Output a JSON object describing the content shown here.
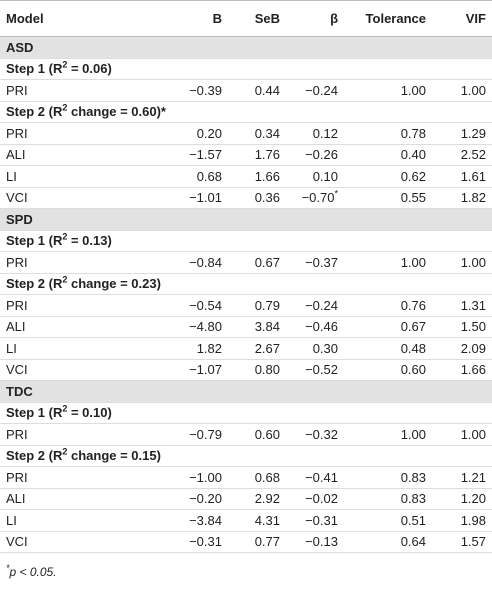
{
  "table": {
    "columns": [
      "Model",
      "B",
      "SeB",
      "β",
      "Tolerance",
      "VIF"
    ],
    "groups": [
      {
        "name": "ASD",
        "steps": [
          {
            "label": {
              "before": "Step 1 (R",
              "sup": "2",
              "after": " = 0.06)"
            },
            "rows": [
              [
                "PRI",
                "−0.39",
                "0.44",
                "−0.24",
                "1.00",
                "1.00"
              ]
            ]
          },
          {
            "label": {
              "before": "Step 2 (R",
              "sup": "2",
              "after": " change = 0.60)*"
            },
            "rows": [
              [
                "PRI",
                "0.20",
                "0.34",
                "0.12",
                "0.78",
                "1.29"
              ],
              [
                "ALI",
                "−1.57",
                "1.76",
                "−0.26",
                "0.40",
                "2.52"
              ],
              [
                "LI",
                "0.68",
                "1.66",
                "0.10",
                "0.62",
                "1.61"
              ],
              [
                "VCI",
                "−1.01",
                "0.36",
                {
                  "value": "−0.70",
                  "sup": "*"
                },
                "0.55",
                "1.82"
              ]
            ]
          }
        ]
      },
      {
        "name": "SPD",
        "steps": [
          {
            "label": {
              "before": "Step 1 (R",
              "sup": "2",
              "after": " = 0.13)"
            },
            "rows": [
              [
                "PRI",
                "−0.84",
                "0.67",
                "−0.37",
                "1.00",
                "1.00"
              ]
            ]
          },
          {
            "label": {
              "before": "Step 2 (R",
              "sup": "2",
              "after": " change = 0.23)"
            },
            "rows": [
              [
                "PRI",
                "−0.54",
                "0.79",
                "−0.24",
                "0.76",
                "1.31"
              ],
              [
                "ALI",
                "−4.80",
                "3.84",
                "−0.46",
                "0.67",
                "1.50"
              ],
              [
                "LI",
                "1.82",
                "2.67",
                "0.30",
                "0.48",
                "2.09"
              ],
              [
                "VCI",
                "−1.07",
                "0.80",
                "−0.52",
                "0.60",
                "1.66"
              ]
            ]
          }
        ]
      },
      {
        "name": "TDC",
        "steps": [
          {
            "label": {
              "before": "Step 1 (R",
              "sup": "2",
              "after": " = 0.10)"
            },
            "rows": [
              [
                "PRI",
                "−0.79",
                "0.60",
                "−0.32",
                "1.00",
                "1.00"
              ]
            ]
          },
          {
            "label": {
              "before": "Step 2 (R",
              "sup": "2",
              "after": " change = 0.15)"
            },
            "rows": [
              [
                "PRI",
                "−1.00",
                "0.68",
                "−0.41",
                "0.83",
                "1.21"
              ],
              [
                "ALI",
                "−0.20",
                "2.92",
                "−0.02",
                "0.83",
                "1.20"
              ],
              [
                "LI",
                "−3.84",
                "4.31",
                "−0.31",
                "0.51",
                "1.98"
              ],
              [
                "VCI",
                "−0.31",
                "0.77",
                "−0.13",
                "0.64",
                "1.57"
              ]
            ]
          }
        ]
      }
    ]
  },
  "footnote": {
    "marker": "*",
    "text": "p < 0.05."
  }
}
